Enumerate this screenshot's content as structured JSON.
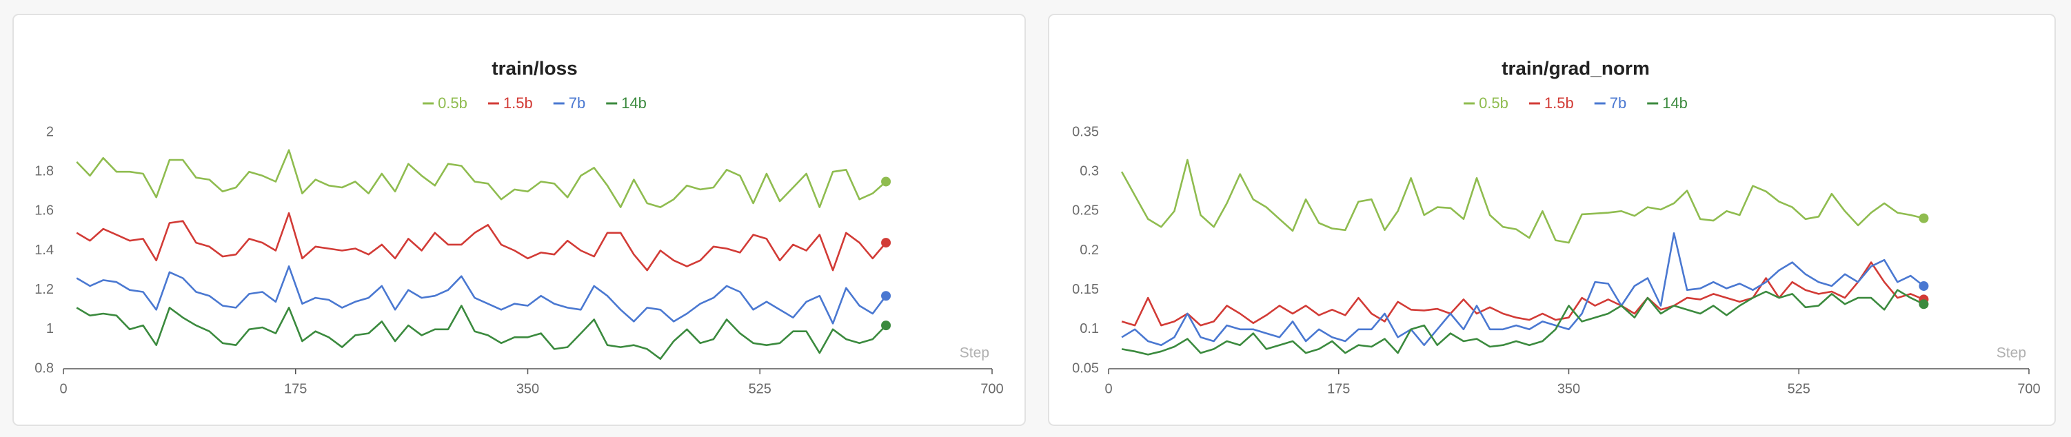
{
  "chart_data": [
    {
      "type": "line",
      "title": "train/loss",
      "xlabel": "Step",
      "xlim": [
        0,
        700
      ],
      "xticks": [
        0,
        175,
        350,
        525,
        700
      ],
      "ylim": [
        0.8,
        2
      ],
      "yticks": [
        0.8,
        1,
        1.2,
        1.4,
        1.6,
        1.8,
        2
      ],
      "grid": false,
      "legend": "top",
      "x": [
        10,
        20,
        30,
        40,
        50,
        60,
        70,
        80,
        90,
        100,
        110,
        120,
        130,
        140,
        150,
        160,
        170,
        180,
        190,
        200,
        210,
        220,
        230,
        240,
        250,
        260,
        270,
        280,
        290,
        300,
        310,
        320,
        330,
        340,
        350,
        360,
        370,
        380,
        390,
        400,
        410,
        420,
        430,
        440,
        450,
        460,
        470,
        480,
        490,
        500,
        510,
        520,
        530,
        540,
        550,
        560,
        570,
        580,
        590,
        600,
        610,
        620
      ],
      "series": [
        {
          "name": "0.5b",
          "color": "#8fbc4f",
          "values": [
            1.85,
            1.78,
            1.87,
            1.8,
            1.8,
            1.79,
            1.67,
            1.86,
            1.86,
            1.77,
            1.76,
            1.7,
            1.72,
            1.8,
            1.78,
            1.75,
            1.91,
            1.69,
            1.76,
            1.73,
            1.72,
            1.75,
            1.69,
            1.79,
            1.7,
            1.84,
            1.78,
            1.73,
            1.84,
            1.83,
            1.75,
            1.74,
            1.66,
            1.71,
            1.7,
            1.75,
            1.74,
            1.67,
            1.78,
            1.82,
            1.73,
            1.62,
            1.76,
            1.64,
            1.62,
            1.66,
            1.73,
            1.71,
            1.72,
            1.81,
            1.78,
            1.64,
            1.79,
            1.65,
            1.72,
            1.79,
            1.62,
            1.8,
            1.81,
            1.66,
            1.69,
            1.75
          ]
        },
        {
          "name": "1.5b",
          "color": "#d23b36",
          "values": [
            1.49,
            1.45,
            1.51,
            1.48,
            1.45,
            1.46,
            1.35,
            1.54,
            1.55,
            1.44,
            1.42,
            1.37,
            1.38,
            1.46,
            1.44,
            1.4,
            1.59,
            1.36,
            1.42,
            1.41,
            1.4,
            1.41,
            1.38,
            1.43,
            1.36,
            1.46,
            1.4,
            1.49,
            1.43,
            1.43,
            1.49,
            1.53,
            1.43,
            1.4,
            1.36,
            1.39,
            1.38,
            1.45,
            1.4,
            1.37,
            1.49,
            1.49,
            1.38,
            1.3,
            1.4,
            1.35,
            1.32,
            1.35,
            1.42,
            1.41,
            1.39,
            1.48,
            1.46,
            1.35,
            1.43,
            1.4,
            1.48,
            1.3,
            1.49,
            1.44,
            1.36,
            1.44
          ]
        },
        {
          "name": "7b",
          "color": "#4a78d1",
          "values": [
            1.26,
            1.22,
            1.25,
            1.24,
            1.2,
            1.19,
            1.1,
            1.29,
            1.26,
            1.19,
            1.17,
            1.12,
            1.11,
            1.18,
            1.19,
            1.14,
            1.32,
            1.13,
            1.16,
            1.15,
            1.11,
            1.14,
            1.16,
            1.22,
            1.1,
            1.2,
            1.16,
            1.17,
            1.2,
            1.27,
            1.16,
            1.13,
            1.1,
            1.13,
            1.12,
            1.17,
            1.13,
            1.11,
            1.1,
            1.22,
            1.17,
            1.1,
            1.04,
            1.11,
            1.1,
            1.04,
            1.08,
            1.13,
            1.16,
            1.22,
            1.19,
            1.1,
            1.14,
            1.1,
            1.06,
            1.14,
            1.17,
            1.03,
            1.21,
            1.12,
            1.08,
            1.17
          ]
        },
        {
          "name": "14b",
          "color": "#3b8a3e",
          "values": [
            1.11,
            1.07,
            1.08,
            1.07,
            1.0,
            1.02,
            0.92,
            1.11,
            1.06,
            1.02,
            0.99,
            0.93,
            0.92,
            1.0,
            1.01,
            0.98,
            1.11,
            0.94,
            0.99,
            0.96,
            0.91,
            0.97,
            0.98,
            1.04,
            0.94,
            1.02,
            0.97,
            1.0,
            1.0,
            1.12,
            0.99,
            0.97,
            0.93,
            0.96,
            0.96,
            0.98,
            0.9,
            0.91,
            0.98,
            1.05,
            0.92,
            0.91,
            0.92,
            0.9,
            0.85,
            0.94,
            1.0,
            0.93,
            0.95,
            1.05,
            0.98,
            0.93,
            0.92,
            0.93,
            0.99,
            0.99,
            0.88,
            1.0,
            0.95,
            0.93,
            0.95,
            1.02
          ]
        }
      ]
    },
    {
      "type": "line",
      "title": "train/grad_norm",
      "xlabel": "Step",
      "xlim": [
        0,
        700
      ],
      "xticks": [
        0,
        175,
        350,
        525,
        700
      ],
      "ylim": [
        0.05,
        0.35
      ],
      "yticks": [
        0.05,
        0.1,
        0.15,
        0.2,
        0.25,
        0.3,
        0.35
      ],
      "grid": false,
      "legend": "top",
      "x": [
        10,
        20,
        30,
        40,
        50,
        60,
        70,
        80,
        90,
        100,
        110,
        120,
        130,
        140,
        150,
        160,
        170,
        180,
        190,
        200,
        210,
        220,
        230,
        240,
        250,
        260,
        270,
        280,
        290,
        300,
        310,
        320,
        330,
        340,
        350,
        360,
        370,
        380,
        390,
        400,
        410,
        420,
        430,
        440,
        450,
        460,
        470,
        480,
        490,
        500,
        510,
        520,
        530,
        540,
        550,
        560,
        570,
        580,
        590,
        600,
        610,
        620
      ],
      "series": [
        {
          "name": "0.5b",
          "color": "#8fbc4f",
          "values": [
            0.3,
            0.27,
            0.24,
            0.23,
            0.25,
            0.315,
            0.245,
            0.23,
            0.26,
            0.297,
            0.265,
            0.255,
            0.24,
            0.225,
            0.265,
            0.235,
            0.228,
            0.226,
            0.262,
            0.265,
            0.226,
            0.25,
            0.292,
            0.245,
            0.255,
            0.254,
            0.24,
            0.292,
            0.245,
            0.23,
            0.227,
            0.216,
            0.25,
            0.213,
            0.21,
            0.246,
            0.247,
            0.248,
            0.25,
            0.244,
            0.255,
            0.252,
            0.26,
            0.276,
            0.24,
            0.238,
            0.25,
            0.245,
            0.282,
            0.275,
            0.262,
            0.255,
            0.24,
            0.243,
            0.272,
            0.25,
            0.232,
            0.248,
            0.26,
            0.248,
            0.245,
            0.241
          ]
        },
        {
          "name": "1.5b",
          "color": "#d23b36",
          "values": [
            0.11,
            0.105,
            0.14,
            0.105,
            0.11,
            0.12,
            0.105,
            0.11,
            0.13,
            0.12,
            0.108,
            0.118,
            0.13,
            0.12,
            0.13,
            0.118,
            0.125,
            0.118,
            0.14,
            0.12,
            0.11,
            0.135,
            0.125,
            0.124,
            0.126,
            0.12,
            0.138,
            0.12,
            0.128,
            0.12,
            0.115,
            0.112,
            0.12,
            0.112,
            0.115,
            0.14,
            0.13,
            0.138,
            0.13,
            0.12,
            0.14,
            0.125,
            0.13,
            0.14,
            0.138,
            0.145,
            0.14,
            0.135,
            0.14,
            0.165,
            0.14,
            0.16,
            0.15,
            0.145,
            0.148,
            0.14,
            0.16,
            0.185,
            0.16,
            0.14,
            0.145,
            0.138
          ]
        },
        {
          "name": "7b",
          "color": "#4a78d1",
          "values": [
            0.09,
            0.1,
            0.085,
            0.08,
            0.09,
            0.12,
            0.09,
            0.085,
            0.105,
            0.1,
            0.1,
            0.095,
            0.09,
            0.11,
            0.085,
            0.1,
            0.09,
            0.085,
            0.1,
            0.1,
            0.12,
            0.09,
            0.1,
            0.08,
            0.1,
            0.12,
            0.1,
            0.13,
            0.1,
            0.1,
            0.105,
            0.1,
            0.11,
            0.105,
            0.1,
            0.12,
            0.16,
            0.158,
            0.13,
            0.155,
            0.165,
            0.13,
            0.222,
            0.15,
            0.152,
            0.16,
            0.152,
            0.158,
            0.15,
            0.16,
            0.175,
            0.185,
            0.17,
            0.16,
            0.155,
            0.17,
            0.16,
            0.18,
            0.188,
            0.16,
            0.168,
            0.155
          ]
        },
        {
          "name": "14b",
          "color": "#3b8a3e",
          "values": [
            0.075,
            0.072,
            0.068,
            0.072,
            0.078,
            0.088,
            0.07,
            0.075,
            0.085,
            0.08,
            0.095,
            0.075,
            0.08,
            0.085,
            0.07,
            0.075,
            0.085,
            0.07,
            0.08,
            0.078,
            0.088,
            0.07,
            0.1,
            0.105,
            0.08,
            0.095,
            0.085,
            0.088,
            0.078,
            0.08,
            0.085,
            0.08,
            0.085,
            0.1,
            0.13,
            0.11,
            0.115,
            0.12,
            0.13,
            0.115,
            0.14,
            0.12,
            0.13,
            0.125,
            0.12,
            0.13,
            0.118,
            0.13,
            0.14,
            0.148,
            0.14,
            0.145,
            0.128,
            0.13,
            0.145,
            0.132,
            0.14,
            0.14,
            0.125,
            0.15,
            0.14,
            0.132
          ]
        }
      ]
    }
  ]
}
